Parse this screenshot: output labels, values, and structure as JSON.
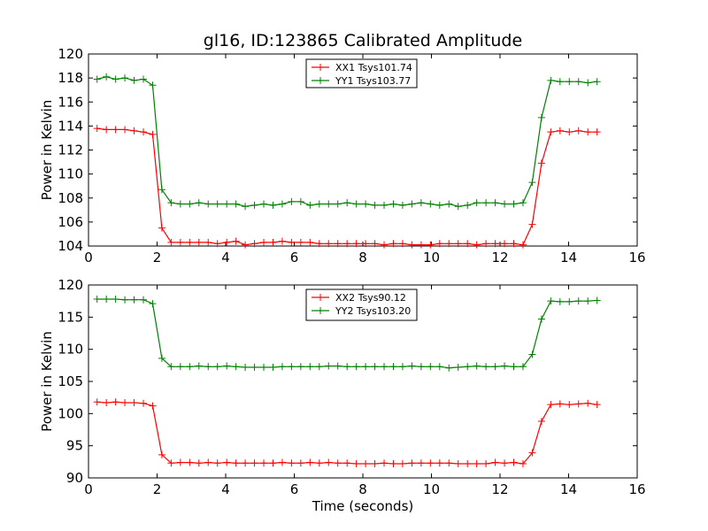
{
  "figure_title": "gl16, ID:123865 Calibrated Amplitude",
  "chart_data": [
    {
      "type": "line",
      "title": "gl16, ID:123865 Calibrated Amplitude",
      "xlabel": "",
      "ylabel": "Power in Kelvin",
      "xlim": [
        0,
        16
      ],
      "ylim": [
        104,
        120
      ],
      "xticks": [
        "0",
        "2",
        "4",
        "6",
        "8",
        "10",
        "12",
        "14",
        "16"
      ],
      "yticks": [
        "104",
        "106",
        "108",
        "110",
        "112",
        "114",
        "116",
        "118",
        "120"
      ],
      "grid": false,
      "legend_position": "top-center",
      "marker": "+",
      "x": [
        0.25,
        0.52,
        0.79,
        1.06,
        1.33,
        1.6,
        1.87,
        2.14,
        2.41,
        2.68,
        2.95,
        3.22,
        3.49,
        3.76,
        4.03,
        4.3,
        4.57,
        4.84,
        5.11,
        5.38,
        5.65,
        5.92,
        6.19,
        6.46,
        6.73,
        7.0,
        7.27,
        7.54,
        7.81,
        8.08,
        8.35,
        8.62,
        8.89,
        9.16,
        9.43,
        9.7,
        9.97,
        10.24,
        10.51,
        10.78,
        11.05,
        11.32,
        11.59,
        11.86,
        12.13,
        12.4,
        12.67,
        12.94,
        13.21,
        13.48,
        13.75,
        14.02,
        14.29,
        14.56,
        14.83
      ],
      "series": [
        {
          "name": "XX1 Tsys101.74",
          "color": "#ff0000",
          "values": [
            113.8,
            113.7,
            113.7,
            113.7,
            113.6,
            113.5,
            113.3,
            105.5,
            104.3,
            104.3,
            104.3,
            104.3,
            104.3,
            104.2,
            104.3,
            104.4,
            104.1,
            104.2,
            104.3,
            104.3,
            104.4,
            104.3,
            104.3,
            104.3,
            104.2,
            104.2,
            104.2,
            104.2,
            104.2,
            104.2,
            104.2,
            104.1,
            104.2,
            104.2,
            104.1,
            104.1,
            104.1,
            104.2,
            104.2,
            104.2,
            104.2,
            104.1,
            104.2,
            104.2,
            104.2,
            104.2,
            104.1,
            105.8,
            110.9,
            113.5,
            113.6,
            113.5,
            113.6,
            113.5,
            113.5
          ]
        },
        {
          "name": "YY1 Tsys103.77",
          "color": "#008000",
          "values": [
            117.9,
            118.1,
            117.9,
            118.0,
            117.8,
            117.9,
            117.4,
            108.7,
            107.6,
            107.5,
            107.5,
            107.6,
            107.5,
            107.5,
            107.5,
            107.5,
            107.3,
            107.4,
            107.5,
            107.4,
            107.5,
            107.7,
            107.7,
            107.4,
            107.5,
            107.5,
            107.5,
            107.6,
            107.5,
            107.5,
            107.4,
            107.4,
            107.5,
            107.4,
            107.5,
            107.6,
            107.5,
            107.4,
            107.5,
            107.3,
            107.4,
            107.6,
            107.6,
            107.6,
            107.5,
            107.5,
            107.6,
            109.3,
            114.7,
            117.8,
            117.7,
            117.7,
            117.7,
            117.6,
            117.7
          ]
        }
      ]
    },
    {
      "type": "line",
      "title": "",
      "xlabel": "Time (seconds)",
      "ylabel": "Power in Kelvin",
      "xlim": [
        0,
        16
      ],
      "ylim": [
        90,
        120
      ],
      "xticks": [
        "0",
        "2",
        "4",
        "6",
        "8",
        "10",
        "12",
        "14",
        "16"
      ],
      "yticks": [
        "90",
        "95",
        "100",
        "105",
        "110",
        "115",
        "120"
      ],
      "grid": false,
      "legend_position": "top-center",
      "marker": "+",
      "x": [
        0.25,
        0.52,
        0.79,
        1.06,
        1.33,
        1.6,
        1.87,
        2.14,
        2.41,
        2.68,
        2.95,
        3.22,
        3.49,
        3.76,
        4.03,
        4.3,
        4.57,
        4.84,
        5.11,
        5.38,
        5.65,
        5.92,
        6.19,
        6.46,
        6.73,
        7.0,
        7.27,
        7.54,
        7.81,
        8.08,
        8.35,
        8.62,
        8.89,
        9.16,
        9.43,
        9.7,
        9.97,
        10.24,
        10.51,
        10.78,
        11.05,
        11.32,
        11.59,
        11.86,
        12.13,
        12.4,
        12.67,
        12.94,
        13.21,
        13.48,
        13.75,
        14.02,
        14.29,
        14.56,
        14.83
      ],
      "series": [
        {
          "name": "XX2 Tsys90.12",
          "color": "#ff0000",
          "values": [
            101.8,
            101.7,
            101.8,
            101.7,
            101.7,
            101.6,
            101.2,
            93.6,
            92.3,
            92.4,
            92.4,
            92.3,
            92.4,
            92.3,
            92.4,
            92.3,
            92.3,
            92.3,
            92.3,
            92.3,
            92.4,
            92.3,
            92.3,
            92.4,
            92.3,
            92.4,
            92.3,
            92.3,
            92.2,
            92.2,
            92.2,
            92.3,
            92.2,
            92.2,
            92.3,
            92.3,
            92.3,
            92.3,
            92.3,
            92.2,
            92.2,
            92.2,
            92.2,
            92.4,
            92.3,
            92.4,
            92.2,
            93.9,
            98.8,
            101.4,
            101.5,
            101.4,
            101.5,
            101.6,
            101.4
          ]
        },
        {
          "name": "YY2 Tsys103.20",
          "color": "#008000",
          "values": [
            117.8,
            117.8,
            117.8,
            117.7,
            117.7,
            117.7,
            117.1,
            108.6,
            107.3,
            107.3,
            107.3,
            107.4,
            107.3,
            107.3,
            107.4,
            107.3,
            107.2,
            107.2,
            107.2,
            107.2,
            107.3,
            107.3,
            107.3,
            107.3,
            107.3,
            107.4,
            107.4,
            107.3,
            107.3,
            107.3,
            107.3,
            107.3,
            107.3,
            107.3,
            107.4,
            107.3,
            107.3,
            107.3,
            107.1,
            107.2,
            107.3,
            107.4,
            107.3,
            107.3,
            107.4,
            107.3,
            107.3,
            109.2,
            114.7,
            117.5,
            117.4,
            117.4,
            117.5,
            117.5,
            117.6
          ]
        }
      ]
    }
  ]
}
